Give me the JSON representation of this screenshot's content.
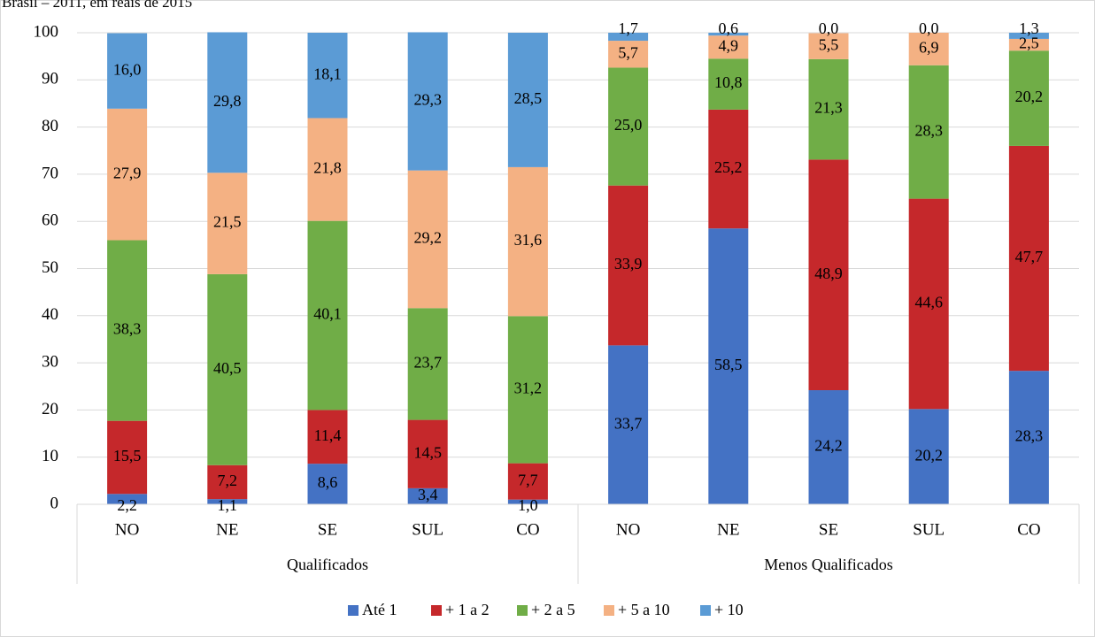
{
  "caption": "Brasil – 2011, em reais de 2015",
  "chart_data": {
    "type": "bar",
    "stacked": true,
    "title": "Brasil – 2011, em reais de 2015",
    "ylim": [
      0,
      100
    ],
    "yticks": [
      0,
      10,
      20,
      30,
      40,
      50,
      60,
      70,
      80,
      90,
      100
    ],
    "grid": true,
    "legend_position": "bottom",
    "groups": [
      {
        "name": "Qualificados",
        "categories": [
          "NO",
          "NE",
          "SE",
          "SUL",
          "CO"
        ]
      },
      {
        "name": "Menos Qualificados",
        "categories": [
          "NO",
          "NE",
          "SE",
          "SUL",
          "CO"
        ]
      }
    ],
    "categories": [
      "NO",
      "NE",
      "SE",
      "SUL",
      "CO",
      "NO",
      "NE",
      "SE",
      "SUL",
      "CO"
    ],
    "series": [
      {
        "name": "Até 1",
        "color": "#4472c4",
        "values": [
          2.2,
          1.1,
          8.6,
          3.4,
          1.0,
          33.7,
          58.5,
          24.2,
          20.2,
          28.3
        ],
        "labels": [
          "2,2",
          "1,1",
          "8,6",
          "3,4",
          "1,0",
          "33,7",
          "58,5",
          "24,2",
          "20,2",
          "28,3"
        ]
      },
      {
        "name": "+ 1 a 2",
        "color": "#c5282b",
        "values": [
          15.5,
          7.2,
          11.4,
          14.5,
          7.7,
          33.9,
          25.2,
          48.9,
          44.6,
          47.7
        ],
        "labels": [
          "15,5",
          "7,2",
          "11,4",
          "14,5",
          "7,7",
          "33,9",
          "25,2",
          "48,9",
          "44,6",
          "47,7"
        ]
      },
      {
        "name": "+ 2 a 5",
        "color": "#70ad47",
        "values": [
          38.3,
          40.5,
          40.1,
          23.7,
          31.2,
          25.0,
          10.8,
          21.3,
          28.3,
          20.2
        ],
        "labels": [
          "38,3",
          "40,5",
          "40,1",
          "23,7",
          "31,2",
          "25,0",
          "10,8",
          "21,3",
          "28,3",
          "20,2"
        ]
      },
      {
        "name": "+ 5 a 10",
        "color": "#f4b183",
        "values": [
          27.9,
          21.5,
          21.8,
          29.2,
          31.6,
          5.7,
          4.9,
          5.5,
          6.9,
          2.5
        ],
        "labels": [
          "27,9",
          "21,5",
          "21,8",
          "29,2",
          "31,6",
          "5,7",
          "4,9",
          "5,5",
          "6,9",
          "2,5"
        ]
      },
      {
        "name": "+ 10",
        "color": "#5b9bd5",
        "values": [
          16.0,
          29.8,
          18.1,
          29.3,
          28.5,
          1.7,
          0.6,
          0.0,
          0.0,
          1.3
        ],
        "labels": [
          "16,0",
          "29,8",
          "18,1",
          "29,3",
          "28,5",
          "1,7",
          "0,6",
          "0,0",
          "0,0",
          "1,3"
        ]
      }
    ]
  }
}
